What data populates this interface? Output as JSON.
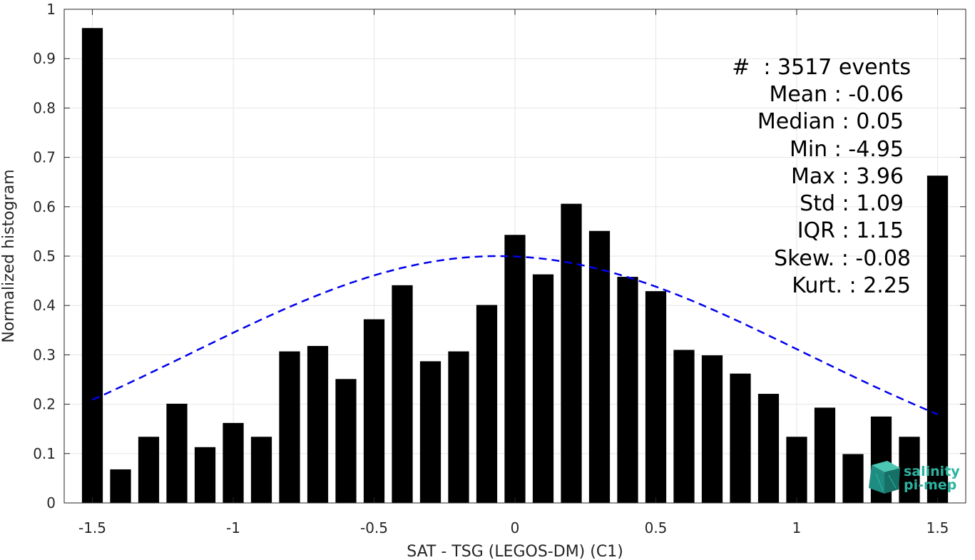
{
  "chart_data": {
    "type": "bar",
    "x": [
      -1.5,
      -1.4,
      -1.3,
      -1.2,
      -1.1,
      -1.0,
      -0.9,
      -0.8,
      -0.7,
      -0.6,
      -0.5,
      -0.4,
      -0.3,
      -0.2,
      -0.1,
      0.0,
      0.1,
      0.2,
      0.3,
      0.4,
      0.5,
      0.6,
      0.7,
      0.8,
      0.9,
      1.0,
      1.1,
      1.2,
      1.3,
      1.4,
      1.5
    ],
    "values": [
      0.962,
      0.068,
      0.134,
      0.201,
      0.113,
      0.162,
      0.134,
      0.307,
      0.318,
      0.251,
      0.372,
      0.441,
      0.287,
      0.307,
      0.401,
      0.543,
      0.463,
      0.606,
      0.551,
      0.458,
      0.429,
      0.31,
      0.299,
      0.262,
      0.221,
      0.134,
      0.193,
      0.099,
      0.175,
      0.134,
      0.663
    ],
    "fit_curve": {
      "style": "dashed",
      "color": "#0000ee",
      "mean": -0.06,
      "std": 1.09,
      "peak": 0.5,
      "x_range": [
        -1.5,
        1.5
      ]
    },
    "xlabel": "SAT - TSG (LEGOS-DM) (C1)",
    "ylabel": "Normalized histogram",
    "xlim": [
      -1.6,
      1.6
    ],
    "ylim": [
      0,
      1
    ],
    "xticks": [
      "-1.5",
      "-1",
      "-0.5",
      "0",
      "0.5",
      "1",
      "1.5"
    ],
    "yticks": [
      "0",
      "0.1",
      "0.2",
      "0.3",
      "0.4",
      "0.5",
      "0.6",
      "0.7",
      "0.8",
      "0.9",
      "1"
    ],
    "grid": true,
    "bar_color": "#000000"
  },
  "stats": [
    "#  : 3517 events",
    "Mean : -0.06",
    "Median : 0.05",
    "Min : -4.95",
    "Max : 3.96",
    "Std : 1.09",
    "IQR : 1.15",
    "Skew. : -0.08",
    "Kurt. : 2.25"
  ],
  "logo": {
    "line1": "salinity",
    "line2": "pi-mep",
    "color": "#2bb3a0"
  }
}
